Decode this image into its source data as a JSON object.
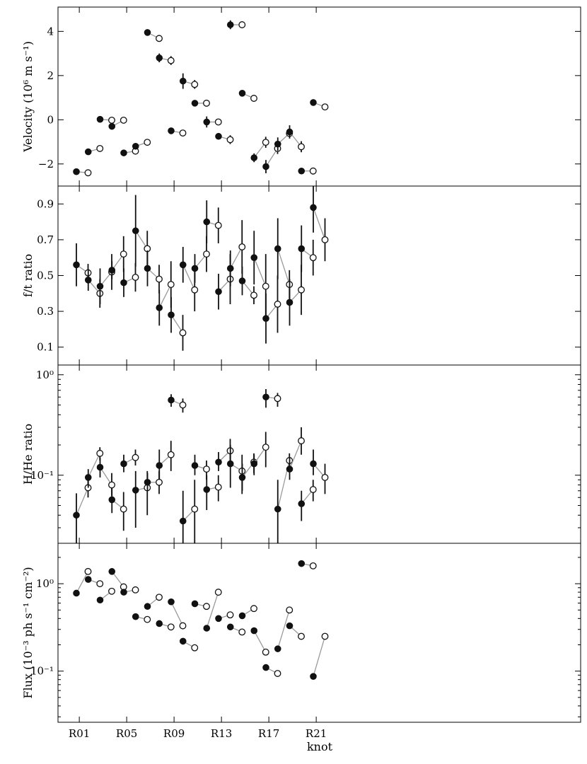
{
  "chart_data": {
    "type": "scatter",
    "xlabel": "knot",
    "x_tick_labels": [
      "R01",
      "R05",
      "R09",
      "R13",
      "R17",
      "R21"
    ],
    "knots": [
      "R01",
      "R02",
      "R03",
      "R04",
      "R05",
      "R06",
      "R07",
      "R08",
      "R09",
      "R10",
      "R11",
      "R12",
      "R13",
      "R14",
      "R15",
      "R16",
      "R17",
      "R18",
      "R19",
      "R20",
      "R21"
    ],
    "legend_markers": [
      "filled",
      "open"
    ],
    "panels": [
      {
        "id": "velocity",
        "ylabel": "Velocity (10⁶ m s⁻¹)",
        "scale": "linear",
        "ylim": [
          -3,
          5.1
        ],
        "yticks": [
          {
            "v": 4,
            "label": "4"
          },
          {
            "v": 2,
            "label": "2"
          },
          {
            "v": 0,
            "label": "0"
          },
          {
            "v": -2,
            "label": "−2"
          }
        ],
        "filled": {
          "y": [
            -2.35,
            -1.45,
            0.02,
            -0.3,
            -1.5,
            -1.2,
            3.95,
            2.8,
            -0.5,
            1.75,
            0.75,
            -0.1,
            -0.75,
            4.3,
            1.2,
            -1.72,
            -2.12,
            -1.1,
            -0.55,
            -2.32,
            0.78
          ],
          "err": [
            0.05,
            0.08,
            0.05,
            0.05,
            0.05,
            0.07,
            0.05,
            0.2,
            0.08,
            0.35,
            0.07,
            0.25,
            0.08,
            0.2,
            0.07,
            0.2,
            0.3,
            0.3,
            0.3,
            0.05,
            0.08
          ]
        },
        "open": {
          "y": [
            -2.4,
            -1.3,
            -0.02,
            -0.02,
            -1.42,
            -1.02,
            3.68,
            2.68,
            -0.6,
            1.6,
            0.75,
            -0.1,
            -0.9,
            4.3,
            0.97,
            -1.02,
            -1.3,
            -0.62,
            -1.22,
            -2.32,
            0.58
          ],
          "err": [
            0.05,
            0.05,
            0.05,
            0.05,
            0.05,
            0.05,
            0.08,
            0.2,
            0.05,
            0.2,
            0.05,
            0.05,
            0.2,
            0.07,
            0.05,
            0.25,
            0.25,
            0.08,
            0.25,
            0.05,
            0.05
          ]
        }
      },
      {
        "id": "ft_ratio",
        "ylabel": "f/t ratio",
        "scale": "linear",
        "ylim": [
          0.0,
          1.0
        ],
        "yticks": [
          {
            "v": 0.9,
            "label": "0.9"
          },
          {
            "v": 0.7,
            "label": "0.7"
          },
          {
            "v": 0.5,
            "label": "0.5"
          },
          {
            "v": 0.3,
            "label": "0.3"
          },
          {
            "v": 0.1,
            "label": "0.1"
          }
        ],
        "filled": {
          "y": [
            0.56,
            0.475,
            0.44,
            0.53,
            0.46,
            0.75,
            0.54,
            0.32,
            0.28,
            0.56,
            0.54,
            0.8,
            0.41,
            0.54,
            0.47,
            0.6,
            0.26,
            0.65,
            0.35,
            0.65,
            0.88
          ],
          "err": [
            0.12,
            0.06,
            0.1,
            0.05,
            0.08,
            0.2,
            0.1,
            0.1,
            0.1,
            0.1,
            0.08,
            0.12,
            0.1,
            0.1,
            0.08,
            0.15,
            0.14,
            0.17,
            0.13,
            0.13,
            0.14
          ]
        },
        "open": {
          "y": [
            0.515,
            0.4,
            0.52,
            0.62,
            0.49,
            0.65,
            0.48,
            0.45,
            0.18,
            0.42,
            0.62,
            0.78,
            0.48,
            0.66,
            0.39,
            0.44,
            0.34,
            0.45,
            0.42,
            0.6,
            0.7
          ],
          "err": [
            0.05,
            0.08,
            0.1,
            0.1,
            0.08,
            0.1,
            0.08,
            0.13,
            0.1,
            0.12,
            0.1,
            0.1,
            0.14,
            0.15,
            0.05,
            0.18,
            0.16,
            0.08,
            0.14,
            0.1,
            0.12
          ]
        }
      },
      {
        "id": "h_he_ratio",
        "ylabel": "H/He ratio",
        "scale": "log",
        "ylim": [
          0.021,
          1.25
        ],
        "yticks": [
          {
            "v": 1.0,
            "label": "10⁰"
          },
          {
            "v": 0.1,
            "label": "10⁻¹"
          }
        ],
        "filled": {
          "y": [
            0.04,
            0.095,
            0.12,
            0.057,
            0.13,
            0.071,
            0.085,
            0.125,
            0.56,
            0.035,
            0.125,
            0.072,
            0.135,
            0.13,
            0.095,
            0.13,
            0.6,
            0.046,
            0.115,
            0.052,
            0.13
          ],
          "lo": [
            0.02,
            0.075,
            0.095,
            0.042,
            0.107,
            0.03,
            0.07,
            0.09,
            0.48,
            0.015,
            0.1,
            0.045,
            0.11,
            0.075,
            0.07,
            0.1,
            0.47,
            0.02,
            0.09,
            0.035,
            0.1
          ],
          "hi": [
            0.066,
            0.115,
            0.15,
            0.075,
            0.16,
            0.11,
            0.105,
            0.18,
            0.64,
            0.07,
            0.16,
            0.1,
            0.17,
            0.2,
            0.13,
            0.16,
            0.72,
            0.09,
            0.15,
            0.07,
            0.18
          ]
        },
        "open": {
          "y": [
            0.075,
            0.165,
            0.08,
            0.046,
            0.15,
            0.075,
            0.085,
            0.16,
            0.5,
            0.046,
            0.115,
            0.076,
            0.175,
            0.11,
            0.135,
            0.19,
            0.58,
            0.14,
            0.22,
            0.072,
            0.095
          ],
          "lo": [
            0.06,
            0.14,
            0.062,
            0.028,
            0.125,
            0.04,
            0.065,
            0.11,
            0.42,
            0.015,
            0.09,
            0.055,
            0.14,
            0.065,
            0.105,
            0.12,
            0.48,
            0.115,
            0.16,
            0.055,
            0.065
          ],
          "hi": [
            0.095,
            0.19,
            0.105,
            0.068,
            0.18,
            0.11,
            0.11,
            0.22,
            0.58,
            0.09,
            0.14,
            0.1,
            0.23,
            0.16,
            0.165,
            0.27,
            0.66,
            0.165,
            0.3,
            0.09,
            0.13
          ]
        }
      },
      {
        "id": "flux",
        "ylabel": "Flux (10⁻³ ph s⁻¹ cm⁻²)",
        "scale": "log",
        "ylim": [
          0.026,
          2.9
        ],
        "yticks": [
          {
            "v": 1.0,
            "label": "10⁰"
          },
          {
            "v": 0.1,
            "label": "10⁻¹"
          }
        ],
        "filled": {
          "y": [
            0.78,
            1.12,
            0.65,
            1.38,
            0.8,
            0.42,
            0.55,
            0.35,
            0.62,
            0.22,
            0.59,
            0.31,
            0.4,
            0.32,
            0.43,
            0.29,
            0.11,
            0.18,
            0.33,
            1.7,
            0.087
          ]
        },
        "open": {
          "y": [
            1.38,
            1.0,
            0.82,
            0.92,
            0.85,
            0.39,
            0.7,
            0.32,
            0.33,
            0.185,
            0.55,
            0.8,
            0.44,
            0.28,
            0.52,
            0.165,
            0.094,
            0.5,
            0.25,
            1.6,
            0.25
          ]
        }
      }
    ]
  }
}
